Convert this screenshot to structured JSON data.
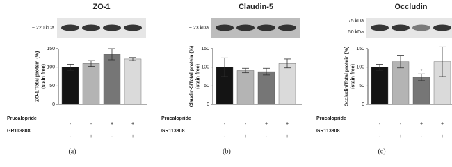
{
  "chart_data": [
    {
      "type": "bar",
      "title": "ZO-1",
      "blot_labels": [
        "~ 220 kDa"
      ],
      "ylabel": [
        "ZO-1/Total protein (%)",
        "(stain free)"
      ],
      "categories": [
        null,
        null,
        null,
        null
      ],
      "values": [
        100,
        110,
        135,
        122
      ],
      "errors": [
        8,
        8,
        15,
        4
      ],
      "colors": [
        "#141414",
        "#b4b4b4",
        "#767676",
        "#dadada"
      ],
      "ylim": [
        0,
        150
      ],
      "yticks": [
        0,
        50,
        100,
        150
      ],
      "conditions": [
        {
          "name": "Prucalopride",
          "signs": [
            "-",
            "-",
            "+",
            "+"
          ]
        },
        {
          "name": "GR113808",
          "signs": [
            "-",
            "+",
            "-",
            "+"
          ]
        }
      ],
      "panel_label": "(a)"
    },
    {
      "type": "bar",
      "title": "Claudin-5",
      "blot_labels": [
        "~ 23 kDa"
      ],
      "ylabel": [
        "Claudin-5/Total protein (%)",
        "(stain free)"
      ],
      "categories": [
        null,
        null,
        null,
        null
      ],
      "values": [
        100,
        91,
        88,
        110
      ],
      "errors": [
        25,
        6,
        9,
        12
      ],
      "colors": [
        "#141414",
        "#b4b4b4",
        "#767676",
        "#dadada"
      ],
      "ylim": [
        0,
        150
      ],
      "yticks": [
        0,
        50,
        100,
        150
      ],
      "conditions": [
        {
          "name": "Prucalopride",
          "signs": [
            "-",
            "-",
            "+",
            "+"
          ]
        },
        {
          "name": "GR113808",
          "signs": [
            "-",
            "+",
            "-",
            "+"
          ]
        }
      ],
      "panel_label": "(b)"
    },
    {
      "type": "bar",
      "title": "Occludin",
      "blot_labels": [
        "75 kDa",
        "50 kDa"
      ],
      "ylabel": [
        "Occludin/Total protein (%)",
        "(stain free)"
      ],
      "categories": [
        null,
        null,
        null,
        null
      ],
      "values": [
        100,
        115,
        73,
        115
      ],
      "errors": [
        8,
        17,
        9,
        40
      ],
      "colors": [
        "#141414",
        "#b4b4b4",
        "#767676",
        "#dadada"
      ],
      "significance": [
        null,
        null,
        "*",
        null
      ],
      "ylim": [
        0,
        150
      ],
      "yticks": [
        0,
        50,
        100,
        150
      ],
      "conditions": [
        {
          "name": "Prucalopride",
          "signs": [
            "-",
            "-",
            "+",
            "+"
          ]
        },
        {
          "name": "GR113808",
          "signs": [
            "-",
            "+",
            "-",
            "+"
          ]
        }
      ],
      "panel_label": "(c)"
    }
  ]
}
